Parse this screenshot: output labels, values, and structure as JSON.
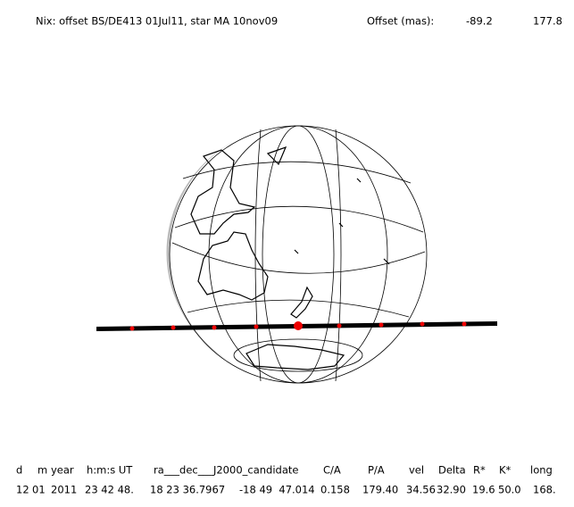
{
  "header": {
    "title": "Nix: offset BS/DE413 01Jul11, star MA 10nov09",
    "offset_label": "Offset (mas):",
    "offset_values": [
      "-89.2",
      "177.8"
    ]
  },
  "table": {
    "columns": [
      "d",
      "m",
      "year",
      "h:m:s UT",
      "ra___dec___J2000_candidate",
      "C/A",
      "P/A",
      "vel",
      "Delta",
      "R*",
      "K*",
      "long"
    ],
    "rows": [
      [
        "12",
        "01",
        "2011",
        "23 42 48.",
        "18 23 36.7967",
        "-18 49  47.014",
        "0.158",
        "179.40",
        "34.56",
        "32.90",
        "19.6",
        "50.0",
        "168."
      ]
    ]
  }
}
